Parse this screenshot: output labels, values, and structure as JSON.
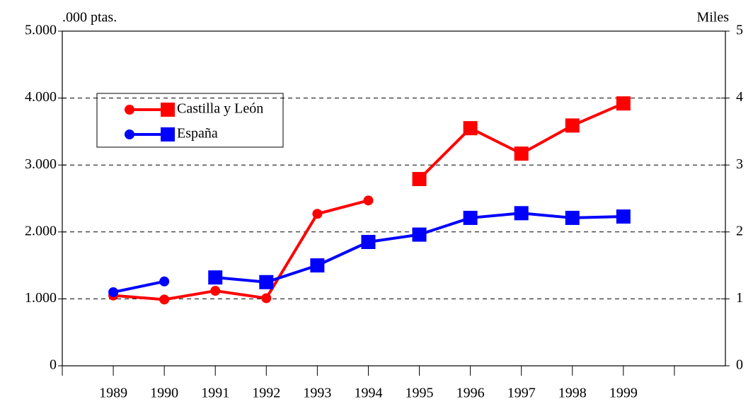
{
  "chart_data": {
    "type": "line",
    "y_label": ".000 ptas.",
    "y2_label": "Miles",
    "categories": [
      null,
      "1989",
      "1990",
      "1991",
      "1992",
      "1993",
      "1994",
      "1995",
      "1996",
      "1997",
      "1998",
      "1999",
      null
    ],
    "series": [
      {
        "name": "Castilla y León",
        "color": "#ff0000",
        "values": [
          null,
          1050,
          990,
          1120,
          1010,
          2270,
          2470,
          null,
          null,
          null,
          null,
          null,
          null
        ],
        "y2_values": [
          null,
          null,
          null,
          null,
          null,
          null,
          null,
          2.79,
          3.55,
          3.17,
          3.59,
          3.92,
          null
        ]
      },
      {
        "name": "España",
        "color": "#0000ff",
        "values": [
          null,
          1100,
          1260,
          null,
          null,
          null,
          null,
          null,
          null,
          null,
          null,
          null,
          null
        ],
        "y2_values": [
          null,
          null,
          null,
          1.32,
          1.25,
          1.5,
          1.85,
          1.96,
          2.21,
          2.28,
          2.21,
          2.23,
          null
        ]
      }
    ],
    "ylim": [
      0,
      5000
    ],
    "yticks": [
      0,
      {
        "value": 1000,
        "label": "1.000"
      },
      {
        "value": 2000,
        "label": "2.000"
      },
      {
        "value": 3000,
        "label": "3.000"
      },
      {
        "value": 4000,
        "label": "4.000"
      },
      {
        "value": 5000,
        "label": "5.000"
      }
    ],
    "y2lim": [
      0,
      5
    ],
    "y2ticks": [
      0,
      1,
      2,
      3,
      4,
      5
    ],
    "grid": true
  }
}
